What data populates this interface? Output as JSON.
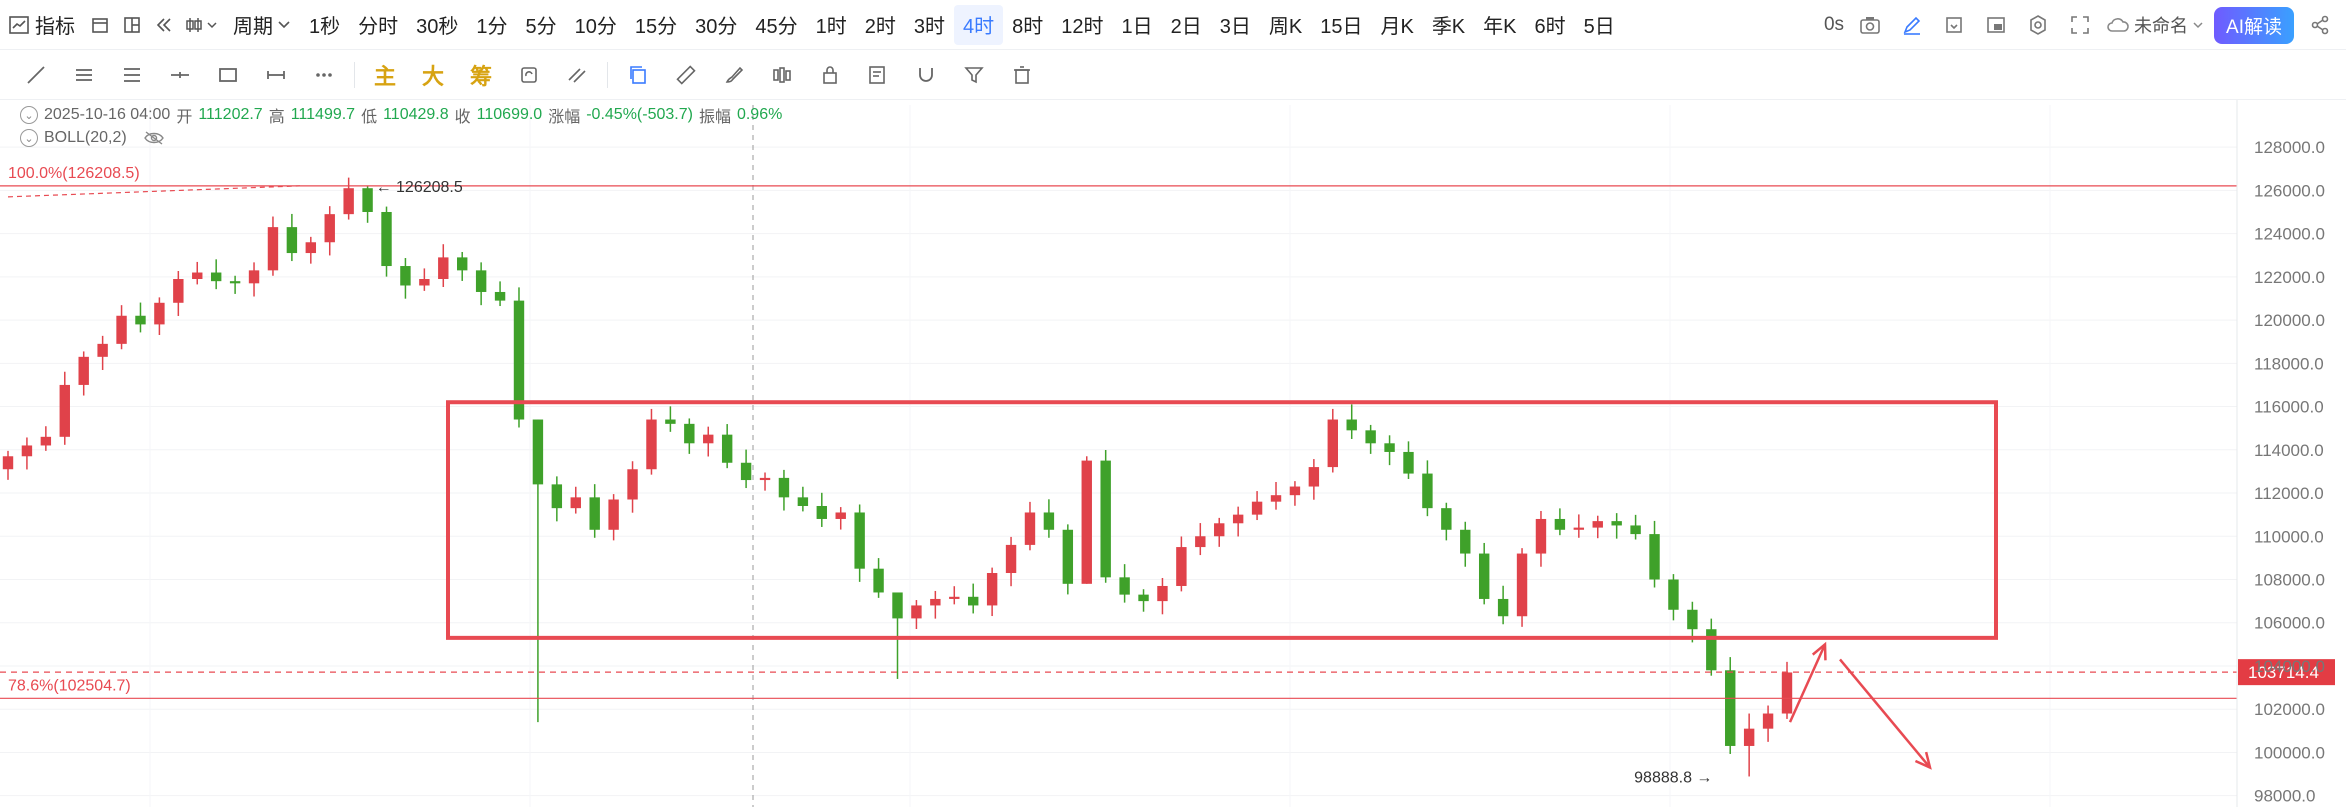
{
  "toolbar": {
    "indicator_label": "指标",
    "period_label": "周期",
    "intervals": [
      "1秒",
      "分时",
      "30秒",
      "1分",
      "5分",
      "10分",
      "15分",
      "30分",
      "45分",
      "1时",
      "2时",
      "3时",
      "4时",
      "8时",
      "12时",
      "1日",
      "2日",
      "3日",
      "周K",
      "15日",
      "月K",
      "季K",
      "年K",
      "6时",
      "5日"
    ],
    "active_interval": "4时",
    "countdown": "0s",
    "layout_name": "未命名",
    "ai_label": "AI解读"
  },
  "drawbar": {
    "main_label": "主",
    "big_label": "大",
    "chip_label": "筹"
  },
  "ohlc": {
    "date": "2025-10-16 04:00",
    "open_label": "开",
    "open": "111202.7",
    "high_label": "高",
    "high": "111499.7",
    "low_label": "低",
    "low": "110429.8",
    "close_label": "收",
    "close": "110699.0",
    "change_label": "涨幅",
    "change": "-0.45%(-503.7)",
    "amp_label": "振幅",
    "amp": "0.96%"
  },
  "indicator": {
    "name": "BOLL(20,2)"
  },
  "colors": {
    "up": "#e0424a",
    "down": "#3fa12a",
    "accent": "#3a7bff",
    "fib": "#e84a52"
  },
  "chart_data": {
    "type": "candlestick",
    "y_axis_ticks": [
      "128000.0",
      "126000.0",
      "124000.0",
      "122000.0",
      "120000.0",
      "118000.0",
      "116000.0",
      "114000.0",
      "112000.0",
      "110000.0",
      "108000.0",
      "106000.0",
      "104000.0",
      "102000.0",
      "100000.0",
      "98000.0"
    ],
    "ylim": [
      97800,
      128700
    ],
    "fib_levels": [
      {
        "label": "100.0%(126208.5)",
        "value": 126208.5
      },
      {
        "label": "78.6%(102504.7)",
        "value": 102504.7
      }
    ],
    "price_tag": "103714.4",
    "price_value": 103714.4,
    "high_marker": "126208.5",
    "low_marker": "98888.8",
    "range_box": {
      "top": 116200,
      "bottom": 105300
    },
    "closes": [
      113700,
      114200,
      114600,
      117000,
      118300,
      118900,
      120200,
      119800,
      120800,
      121900,
      122200,
      121800,
      121700,
      122300,
      124300,
      123100,
      123600,
      124900,
      126100,
      125000,
      122500,
      121600,
      121900,
      122900,
      122300,
      121300,
      120900,
      115400,
      112400,
      111300,
      111800,
      110300,
      111700,
      113100,
      115400,
      115200,
      114300,
      114700,
      113400,
      112600,
      112700,
      111800,
      111400,
      110800,
      111100,
      108500,
      107400,
      106200,
      106800,
      107100,
      107200,
      106800,
      108300,
      109600,
      111100,
      110300,
      107800,
      113500,
      108100,
      107300,
      107000,
      107700,
      109500,
      110000,
      110600,
      111000,
      111600,
      111900,
      112300,
      113200,
      115400,
      114900,
      114300,
      113900,
      112900,
      111300,
      110300,
      109200,
      107100,
      106300,
      109200,
      110800,
      110300,
      110400,
      110700,
      110500,
      110100,
      108000,
      106600,
      105700,
      103800,
      100300,
      101100,
      101800,
      103700
    ],
    "wick_samples": [
      {
        "high": 126208.5,
        "low": 124500
      },
      {
        "high": 115400,
        "low": 101400
      },
      {
        "high": 107100,
        "low": 103400
      },
      {
        "high": 113700,
        "low": 107800
      },
      {
        "high": 116100,
        "low": 114500
      },
      {
        "high": 101800,
        "low": 98888.8
      }
    ]
  }
}
